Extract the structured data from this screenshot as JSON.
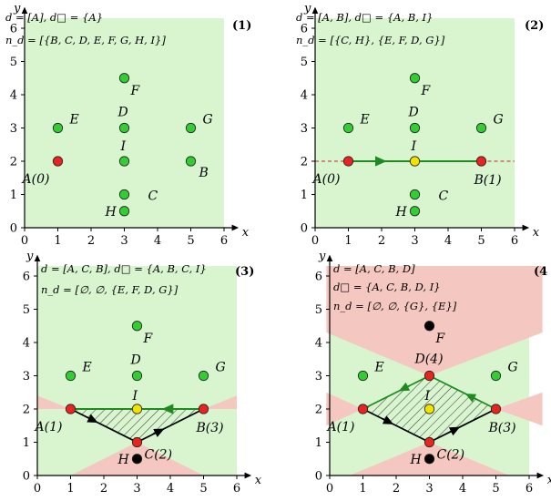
{
  "colors": {
    "green": "#d9f5d0",
    "red": "#f5c7c1",
    "pt_green": "#33cc33",
    "pt_red": "#e8241e",
    "pt_yellow": "#f2e200",
    "pt_black": "#000000",
    "edge": "#1f8a1f",
    "dashed": "#c0504d"
  },
  "axes": {
    "x_label": "x",
    "y_label": "y",
    "x_ticks": [
      "0",
      "1",
      "2",
      "3",
      "4",
      "5",
      "6"
    ],
    "y_ticks": [
      "0",
      "1",
      "2",
      "3",
      "4",
      "5",
      "6"
    ]
  },
  "panels": [
    {
      "index": "(1)",
      "info": [
        "d = [A],  d□ = {A}",
        "n_d = [{B, C, D, E, F, G, H, I}]"
      ],
      "points": [
        {
          "x": 1,
          "y": 3,
          "label": "E",
          "color": "pt_green"
        },
        {
          "x": 3,
          "y": 4.5,
          "label": "F",
          "color": "pt_green"
        },
        {
          "x": 3,
          "y": 3,
          "label": "D",
          "color": "pt_green"
        },
        {
          "x": 5,
          "y": 3,
          "label": "G",
          "color": "pt_green"
        },
        {
          "x": 1,
          "y": 2,
          "label": "A(0)",
          "color": "pt_red"
        },
        {
          "x": 3,
          "y": 2,
          "label": "I",
          "color": "pt_green"
        },
        {
          "x": 5,
          "y": 2,
          "label": "B",
          "color": "pt_green"
        },
        {
          "x": 3,
          "y": 1,
          "label": "C",
          "color": "pt_green"
        },
        {
          "x": 3,
          "y": 0.5,
          "label": "H",
          "color": "pt_green"
        }
      ]
    },
    {
      "index": "(2)",
      "info": [
        "d = [A, B],  d□ = {A, B, I}",
        "n_d = [{C, H}, {E, F, D, G}]"
      ],
      "points": [
        {
          "x": 1,
          "y": 3,
          "label": "E",
          "color": "pt_green"
        },
        {
          "x": 3,
          "y": 4.5,
          "label": "F",
          "color": "pt_green"
        },
        {
          "x": 3,
          "y": 3,
          "label": "D",
          "color": "pt_green"
        },
        {
          "x": 5,
          "y": 3,
          "label": "G",
          "color": "pt_green"
        },
        {
          "x": 1,
          "y": 2,
          "label": "A(0)",
          "color": "pt_red"
        },
        {
          "x": 3,
          "y": 2,
          "label": "I",
          "color": "pt_yellow"
        },
        {
          "x": 5,
          "y": 2,
          "label": "B(1)",
          "color": "pt_red"
        },
        {
          "x": 3,
          "y": 1,
          "label": "C",
          "color": "pt_green"
        },
        {
          "x": 3,
          "y": 0.5,
          "label": "H",
          "color": "pt_green"
        }
      ]
    },
    {
      "index": "(3)",
      "info": [
        "d = [A, C, B],  d□ = {A, B, C, I}",
        "n_d = [∅, ∅, {E, F, D, G}]"
      ],
      "points": [
        {
          "x": 1,
          "y": 3,
          "label": "E",
          "color": "pt_green"
        },
        {
          "x": 3,
          "y": 4.5,
          "label": "F",
          "color": "pt_green"
        },
        {
          "x": 3,
          "y": 3,
          "label": "D",
          "color": "pt_green"
        },
        {
          "x": 5,
          "y": 3,
          "label": "G",
          "color": "pt_green"
        },
        {
          "x": 1,
          "y": 2,
          "label": "A(1)",
          "color": "pt_red"
        },
        {
          "x": 3,
          "y": 2,
          "label": "I",
          "color": "pt_yellow"
        },
        {
          "x": 5,
          "y": 2,
          "label": "B(3)",
          "color": "pt_red"
        },
        {
          "x": 3,
          "y": 1,
          "label": "C(2)",
          "color": "pt_red"
        },
        {
          "x": 3,
          "y": 0.5,
          "label": "H",
          "color": "pt_black"
        }
      ]
    },
    {
      "index": "(4",
      "info": [
        "d = [A, C, B, D]",
        "d□ = {A, C, B, D, I}",
        "n_d = [∅, ∅, {G}, {E}]"
      ],
      "points": [
        {
          "x": 1,
          "y": 3,
          "label": "E",
          "color": "pt_green"
        },
        {
          "x": 3,
          "y": 4.5,
          "label": "F",
          "color": "pt_black"
        },
        {
          "x": 3,
          "y": 3,
          "label": "D(4)",
          "color": "pt_red"
        },
        {
          "x": 5,
          "y": 3,
          "label": "G",
          "color": "pt_green"
        },
        {
          "x": 1,
          "y": 2,
          "label": "A(1)",
          "color": "pt_red"
        },
        {
          "x": 3,
          "y": 2,
          "label": "I",
          "color": "pt_yellow"
        },
        {
          "x": 5,
          "y": 2,
          "label": "B(3)",
          "color": "pt_red"
        },
        {
          "x": 3,
          "y": 1,
          "label": "C(2)",
          "color": "pt_red"
        },
        {
          "x": 3,
          "y": 0.5,
          "label": "H",
          "color": "pt_black"
        }
      ]
    }
  ]
}
